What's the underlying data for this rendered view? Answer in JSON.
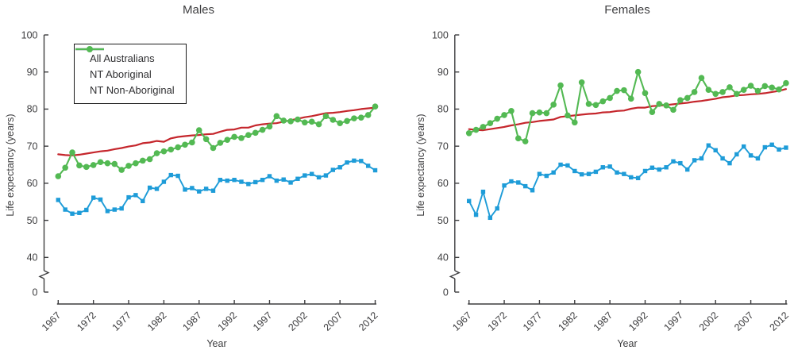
{
  "colors": {
    "all_australians": "#c5262c",
    "nt_aboriginal": "#1e9cd8",
    "nt_non_aboriginal": "#53b953",
    "axis": "#3d3d3f",
    "text": "#3d3d3f",
    "legend_border": "#1b1b1b",
    "background": "#ffffff"
  },
  "legend": {
    "items": [
      {
        "label": "All Australians",
        "color": "#c5262c",
        "marker": "line"
      },
      {
        "label": "NT Aboriginal",
        "color": "#1e9cd8",
        "marker": "square"
      },
      {
        "label": "NT Non-Aboriginal",
        "color": "#53b953",
        "marker": "circle"
      }
    ],
    "position": "upper-left-of-males-panel"
  },
  "axes": {
    "y": {
      "label": "Life expectancy (years)",
      "ticks": [
        100,
        90,
        80,
        70,
        60,
        50,
        40,
        0
      ],
      "broken_axis": true,
      "break_between": [
        0,
        40
      ]
    },
    "x": {
      "label": "Year",
      "ticks": [
        1967,
        1972,
        1977,
        1982,
        1987,
        1992,
        1997,
        2002,
        2007,
        2012
      ],
      "tick_label_rotation_deg": -45
    }
  },
  "chart_data": [
    {
      "type": "line",
      "title": "Males",
      "xlabel": "Year",
      "ylabel": "Life expectancy (years)",
      "ylim": [
        0,
        100
      ],
      "y_axis_break": true,
      "grid": false,
      "legend_position": "upper-left",
      "x": [
        1967,
        1968,
        1969,
        1970,
        1971,
        1972,
        1973,
        1974,
        1975,
        1976,
        1977,
        1978,
        1979,
        1980,
        1981,
        1982,
        1983,
        1984,
        1985,
        1986,
        1987,
        1988,
        1989,
        1990,
        1991,
        1992,
        1993,
        1994,
        1995,
        1996,
        1997,
        1998,
        1999,
        2000,
        2001,
        2002,
        2003,
        2004,
        2005,
        2006,
        2007,
        2008,
        2009,
        2010,
        2011,
        2012
      ],
      "series": [
        {
          "name": "All Australians",
          "color": "#c5262c",
          "marker": "none",
          "values": [
            67.8,
            67.6,
            67.5,
            67.7,
            68.0,
            68.3,
            68.6,
            68.8,
            69.2,
            69.5,
            69.9,
            70.2,
            70.8,
            71.0,
            71.4,
            71.2,
            72.1,
            72.5,
            72.7,
            72.9,
            73.0,
            73.2,
            73.3,
            73.9,
            74.4,
            74.5,
            75.0,
            75.0,
            75.6,
            75.9,
            76.1,
            76.2,
            76.6,
            77.0,
            77.4,
            77.8,
            78.1,
            78.5,
            78.9,
            79.0,
            79.2,
            79.5,
            79.7,
            80.0,
            80.2,
            80.4
          ]
        },
        {
          "name": "NT Aboriginal",
          "color": "#1e9cd8",
          "marker": "square",
          "values": [
            55.5,
            52.9,
            51.8,
            52.0,
            52.8,
            56.1,
            55.6,
            52.5,
            52.9,
            53.2,
            56.2,
            56.8,
            55.2,
            58.8,
            58.5,
            60.4,
            62.2,
            62.0,
            58.3,
            58.7,
            57.8,
            58.5,
            58.0,
            60.9,
            60.7,
            60.9,
            60.4,
            59.8,
            60.3,
            60.9,
            61.9,
            60.7,
            61.0,
            60.2,
            61.2,
            62.1,
            62.5,
            61.6,
            62.1,
            63.6,
            64.3,
            65.6,
            66.1,
            66.0,
            64.7,
            63.5
          ]
        },
        {
          "name": "NT Non-Aboriginal",
          "color": "#53b953",
          "marker": "circle",
          "values": [
            61.9,
            64.2,
            68.3,
            64.8,
            64.4,
            64.9,
            65.7,
            65.4,
            65.2,
            63.6,
            64.7,
            65.4,
            66.1,
            66.5,
            68.1,
            68.6,
            69.1,
            69.7,
            70.4,
            71.0,
            74.3,
            71.9,
            69.5,
            70.9,
            71.7,
            72.5,
            72.2,
            73.0,
            73.6,
            74.4,
            75.3,
            78.1,
            76.9,
            76.7,
            77.2,
            76.4,
            76.6,
            75.9,
            78.1,
            77.1,
            76.2,
            76.8,
            77.5,
            77.7,
            78.4,
            80.7
          ]
        }
      ]
    },
    {
      "type": "line",
      "title": "Females",
      "xlabel": "Year",
      "ylabel": "Life expectancy (years)",
      "ylim": [
        0,
        100
      ],
      "y_axis_break": true,
      "grid": false,
      "legend_position": "none",
      "x": [
        1967,
        1968,
        1969,
        1970,
        1971,
        1972,
        1973,
        1974,
        1975,
        1976,
        1977,
        1978,
        1979,
        1980,
        1981,
        1982,
        1983,
        1984,
        1985,
        1986,
        1987,
        1988,
        1989,
        1990,
        1991,
        1992,
        1993,
        1994,
        1995,
        1996,
        1997,
        1998,
        1999,
        2000,
        2001,
        2002,
        2003,
        2004,
        2005,
        2006,
        2007,
        2008,
        2009,
        2010,
        2011,
        2012
      ],
      "series": [
        {
          "name": "All Australians",
          "color": "#c5262c",
          "marker": "none",
          "values": [
            74.6,
            74.4,
            74.3,
            74.6,
            74.9,
            75.2,
            75.6,
            75.9,
            76.3,
            76.5,
            76.8,
            77.0,
            77.2,
            77.9,
            78.1,
            78.3,
            78.5,
            78.7,
            78.8,
            79.1,
            79.2,
            79.5,
            79.6,
            80.1,
            80.4,
            80.4,
            80.8,
            80.9,
            81.1,
            81.3,
            81.5,
            81.7,
            82.0,
            82.2,
            82.5,
            82.8,
            83.2,
            83.4,
            83.7,
            83.8,
            84.0,
            84.1,
            84.3,
            84.6,
            84.9,
            85.4
          ]
        },
        {
          "name": "NT Aboriginal",
          "color": "#1e9cd8",
          "marker": "square",
          "values": [
            55.2,
            51.5,
            57.7,
            50.7,
            53.2,
            59.4,
            60.5,
            60.2,
            59.2,
            58.1,
            62.5,
            62.0,
            62.9,
            65.0,
            64.8,
            63.3,
            62.4,
            62.5,
            63.1,
            64.3,
            64.5,
            62.9,
            62.5,
            61.6,
            61.4,
            63.3,
            64.2,
            63.7,
            64.3,
            65.9,
            65.4,
            63.7,
            66.2,
            66.7,
            70.2,
            68.9,
            66.7,
            65.4,
            67.8,
            69.9,
            67.5,
            66.7,
            69.7,
            70.4,
            69.1,
            69.6
          ]
        },
        {
          "name": "NT Non-Aboriginal",
          "color": "#53b953",
          "marker": "circle",
          "values": [
            73.5,
            74.4,
            75.2,
            76.2,
            77.4,
            78.4,
            79.5,
            72.1,
            71.3,
            78.9,
            79.1,
            78.9,
            81.2,
            86.4,
            78.3,
            76.4,
            87.2,
            81.4,
            81.1,
            82.1,
            83.0,
            84.9,
            85.1,
            82.8,
            90.0,
            84.3,
            79.2,
            81.4,
            81.0,
            79.8,
            82.4,
            83.0,
            84.6,
            88.4,
            85.2,
            84.1,
            84.6,
            85.9,
            84.1,
            85.2,
            86.3,
            84.9,
            86.2,
            85.8,
            85.3,
            87.0
          ]
        }
      ]
    }
  ]
}
